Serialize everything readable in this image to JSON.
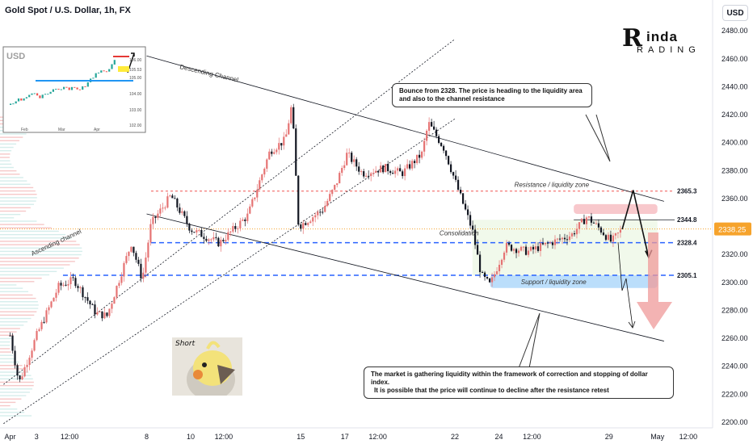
{
  "header": {
    "symbol_title": "Gold Spot / U.S. Dollar, 1h, FX",
    "currency_button": "USD"
  },
  "logo": {
    "top": "inda",
    "bottom": "RADING",
    "letter": "R"
  },
  "inset": {
    "label": "USD",
    "ytick_labels": [
      "106.00",
      "105.53",
      "105.00",
      "104.00",
      "103.00",
      "102.00"
    ],
    "xtick_labels": [
      "Feb",
      "Mar",
      "Apr"
    ]
  },
  "callouts": {
    "top": "Bounce from 2328. The price is heading to the liquidity area and also to the channel resistance",
    "bottom_line1": "The market is gathering liquidity within the framework of correction and stopping of dollar index.",
    "bottom_line2": "It is possible that the price will continue to decline after the resistance retest"
  },
  "sticker": {
    "text": "Short"
  },
  "colors": {
    "up_candle": "#e57373",
    "down_candle": "#131722",
    "channel": "#131722",
    "level_blue": "#2962ff",
    "level_red": "#ef5350",
    "zone_blue": "#bbdefb",
    "zone_red": "#f8c8cc",
    "zone_green": "#eef7e6",
    "price_label": "#f6a32c",
    "arrow_red": "#ef9a9a"
  },
  "chart_data": {
    "type": "candlestick",
    "title": "Gold Spot / U.S. Dollar, 1h, FX",
    "y_axis_ticks": [
      2480,
      2460,
      2440,
      2420,
      2400,
      2380,
      2360,
      2340,
      2320,
      2300,
      2280,
      2260,
      2240,
      2220,
      2200
    ],
    "y_axis_tick_labels": [
      "2480.00",
      "2460.00",
      "2440.00",
      "2420.00",
      "2400.00",
      "2380.00",
      "2360.00",
      "2340.00",
      "2320.00",
      "2300.00",
      "2280.00",
      "2260.00",
      "2240.00",
      "2220.00",
      "2200.00"
    ],
    "ylim": [
      2195,
      2495
    ],
    "x_axis_labels": [
      {
        "label": "Apr",
        "day": 1.8
      },
      {
        "label": "3",
        "day": 3
      },
      {
        "label": "12:00",
        "day": 4.5
      },
      {
        "label": "8",
        "day": 8
      },
      {
        "label": "10",
        "day": 10
      },
      {
        "label": "12:00",
        "day": 11.5
      },
      {
        "label": "15",
        "day": 15
      },
      {
        "label": "17",
        "day": 17
      },
      {
        "label": "12:00",
        "day": 18.5
      },
      {
        "label": "22",
        "day": 22
      },
      {
        "label": "24",
        "day": 24
      },
      {
        "label": "12:00",
        "day": 25.5
      },
      {
        "label": "29",
        "day": 29
      },
      {
        "label": "May",
        "day": 31.2
      },
      {
        "label": "12:00",
        "day": 32.6
      }
    ],
    "close_path": [
      {
        "day": 1.8,
        "price": 2262
      },
      {
        "day": 2.2,
        "price": 2228
      },
      {
        "day": 3.0,
        "price": 2262
      },
      {
        "day": 4.0,
        "price": 2297
      },
      {
        "day": 4.7,
        "price": 2302
      },
      {
        "day": 5.7,
        "price": 2278
      },
      {
        "day": 6.2,
        "price": 2276
      },
      {
        "day": 7.3,
        "price": 2328
      },
      {
        "day": 7.8,
        "price": 2302
      },
      {
        "day": 8.2,
        "price": 2342
      },
      {
        "day": 9.1,
        "price": 2362
      },
      {
        "day": 10.0,
        "price": 2338
      },
      {
        "day": 11.3,
        "price": 2328
      },
      {
        "day": 12.6,
        "price": 2348
      },
      {
        "day": 13.6,
        "price": 2394
      },
      {
        "day": 14.3,
        "price": 2402
      },
      {
        "day": 14.6,
        "price": 2428
      },
      {
        "day": 14.9,
        "price": 2340
      },
      {
        "day": 16.0,
        "price": 2352
      },
      {
        "day": 16.6,
        "price": 2370
      },
      {
        "day": 17.1,
        "price": 2392
      },
      {
        "day": 17.8,
        "price": 2378
      },
      {
        "day": 18.8,
        "price": 2382
      },
      {
        "day": 19.6,
        "price": 2378
      },
      {
        "day": 20.5,
        "price": 2392
      },
      {
        "day": 20.8,
        "price": 2414
      },
      {
        "day": 21.5,
        "price": 2396
      },
      {
        "day": 22.2,
        "price": 2364
      },
      {
        "day": 22.8,
        "price": 2337
      },
      {
        "day": 23.2,
        "price": 2305
      },
      {
        "day": 23.6,
        "price": 2298
      },
      {
        "day": 24.3,
        "price": 2326
      },
      {
        "day": 25.3,
        "price": 2322
      },
      {
        "day": 26.3,
        "price": 2328
      },
      {
        "day": 27.3,
        "price": 2334
      },
      {
        "day": 28.0,
        "price": 2347
      },
      {
        "day": 28.6,
        "price": 2338
      },
      {
        "day": 29.1,
        "price": 2329
      },
      {
        "day": 29.6,
        "price": 2338
      }
    ],
    "last_price": 2338.25,
    "last_price_label": "2338.25",
    "levels": [
      {
        "label": "2365.3",
        "price": 2365.3,
        "style": "red-dashed",
        "text": "Resistance / liquidity zone"
      },
      {
        "label": "2344.8",
        "price": 2344.8,
        "style": "black-thin"
      },
      {
        "label": "2328.4",
        "price": 2328.4,
        "style": "blue-dashed",
        "text": "Consolidation"
      },
      {
        "label": "2305.1",
        "price": 2305.1,
        "style": "blue-dashed",
        "text": "Support / liquidity zone"
      }
    ],
    "channels": [
      {
        "name": "Descending Channel",
        "start": {
          "day": 8.0,
          "price": 2462
        },
        "end": {
          "day": 31.5,
          "price": 2358
        }
      },
      {
        "name": "Descending Channel lower",
        "start": {
          "day": 8.0,
          "price": 2349
        },
        "end": {
          "day": 31.5,
          "price": 2258
        }
      },
      {
        "name": "Ascending channel",
        "start": {
          "day": 1.5,
          "price": 2227
        },
        "end": {
          "day": 22.0,
          "price": 2474
        }
      },
      {
        "name": "Ascending channel lower",
        "start": {
          "day": 1.5,
          "price": 2199
        },
        "end": {
          "day": 22.0,
          "price": 2417
        }
      }
    ],
    "channel_labels": [
      "Descending Channel",
      "Ascending channel"
    ],
    "projection": [
      {
        "day": 29.6,
        "price": 2338
      },
      {
        "day": 30.1,
        "price": 2366
      },
      {
        "day": 30.8,
        "price": 2318
      }
    ],
    "grid": false,
    "legend": "none"
  }
}
